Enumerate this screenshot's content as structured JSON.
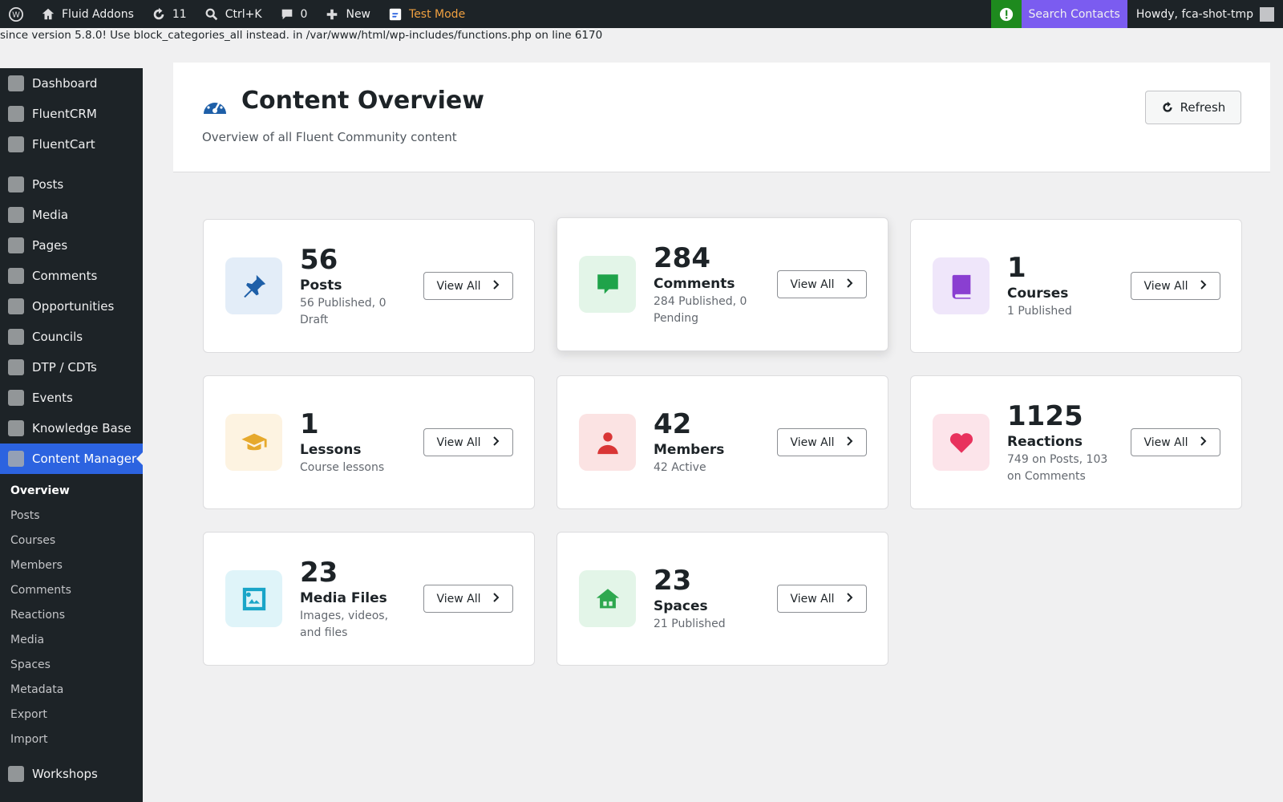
{
  "admin_bar": {
    "site": "Fluid Addons",
    "updates": "11",
    "search": "Ctrl+K",
    "comments": "0",
    "new": "New",
    "test_mode": "Test Mode",
    "search_contacts": "Search Contacts",
    "howdy": "Howdy, fca-shot-tmp"
  },
  "notice": "since version 5.8.0! Use block_categories_all instead. in /var/www/html/wp-includes/functions.php on line 6170",
  "sidebar": {
    "menu_top": [
      "Dashboard",
      "FluentCRM",
      "FluentCart"
    ],
    "menu": [
      "Posts",
      "Media",
      "Pages",
      "Comments",
      "Opportunities",
      "Councils",
      "DTP / CDTs",
      "Events",
      "Knowledge Base",
      "Content Manager"
    ],
    "submenu": [
      "Overview",
      "Posts",
      "Courses",
      "Members",
      "Comments",
      "Reactions",
      "Media",
      "Spaces",
      "Metadata",
      "Export",
      "Import"
    ],
    "menu_bottom": [
      "Workshops"
    ]
  },
  "header": {
    "title": "Content Overview",
    "subtitle": "Overview of all Fluent Community content",
    "refresh": "Refresh"
  },
  "cards": [
    {
      "count": 56,
      "label": "Posts",
      "detail": "56 Published, 0 Draft",
      "button": "View All"
    },
    {
      "count": 284,
      "label": "Comments",
      "detail": "284 Published, 0 Pending",
      "button": "View All"
    },
    {
      "count": 1,
      "label": "Courses",
      "detail": "1 Published",
      "button": "View All"
    },
    {
      "count": 1,
      "label": "Lessons",
      "detail": "Course lessons",
      "button": "View All"
    },
    {
      "count": 42,
      "label": "Members",
      "detail": "42 Active",
      "button": "View All"
    },
    {
      "count": 1125,
      "label": "Reactions",
      "detail": "749 on Posts, 103 on Comments",
      "button": "View All"
    },
    {
      "count": 23,
      "label": "Media Files",
      "detail": "Images, videos, and files",
      "button": "View All"
    },
    {
      "count": 23,
      "label": "Spaces",
      "detail": "21 Published",
      "button": "View All"
    }
  ]
}
